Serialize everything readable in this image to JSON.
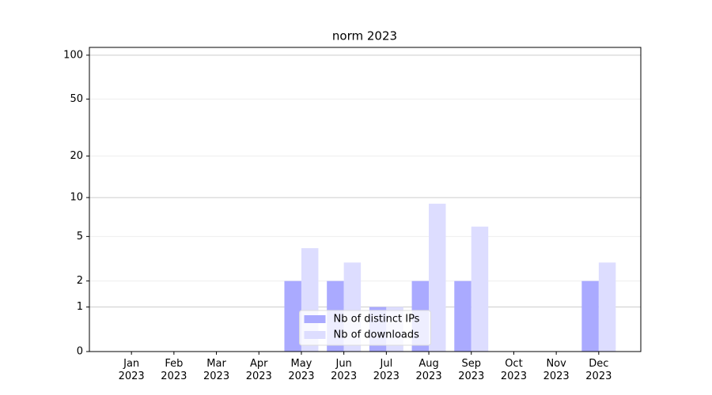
{
  "chart_data": {
    "type": "bar",
    "title": "norm 2023",
    "categories": [
      "Jan\n2023",
      "Feb\n2023",
      "Mar\n2023",
      "Apr\n2023",
      "May\n2023",
      "Jun\n2023",
      "Jul\n2023",
      "Aug\n2023",
      "Sep\n2023",
      "Oct\n2023",
      "Nov\n2023",
      "Dec\n2023"
    ],
    "series": [
      {
        "name": "Nb of distinct IPs",
        "color": "#aaaaff",
        "values": [
          0,
          0,
          0,
          0,
          2,
          2,
          1,
          2,
          2,
          0,
          0,
          2
        ]
      },
      {
        "name": "Nb of downloads",
        "color": "#ddddff",
        "values": [
          0,
          0,
          0,
          0,
          4,
          3,
          1,
          9,
          6,
          0,
          0,
          3
        ]
      }
    ],
    "yscale": "log1p",
    "ylim": [
      0,
      113
    ],
    "yticks": [
      0,
      1,
      2,
      5,
      10,
      20,
      50,
      100
    ],
    "grid": true,
    "legend": "lower center"
  }
}
